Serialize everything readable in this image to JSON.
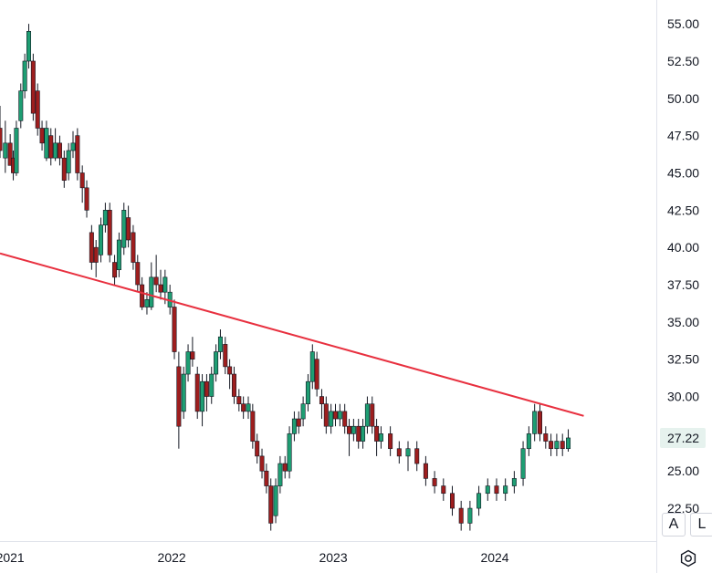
{
  "chart_data": {
    "type": "candlestick",
    "title": "",
    "xlabel": "",
    "ylabel": "",
    "ylim": [
      20.3,
      56.6
    ],
    "xlim": [
      "2020-12-09",
      "2024-12-31"
    ],
    "y_ticks": [
      "55.00",
      "52.50",
      "50.00",
      "47.50",
      "45.00",
      "42.50",
      "40.00",
      "37.50",
      "35.00",
      "32.50",
      "30.00",
      "25.00",
      "22.50"
    ],
    "x_ticks": [
      "2021",
      "2022",
      "2023",
      "2024"
    ],
    "last_price_label": "27.22",
    "last_price": 27.22,
    "grid": false,
    "colors": {
      "up": "#1e9e73",
      "down": "#9e1e1e",
      "wick": "#131722",
      "trendline": "#e8303f",
      "label_bg": "#e6f2ee"
    },
    "trendline": {
      "start": [
        "2020-12-09",
        39.6
      ],
      "end": [
        "2024-07-20",
        28.7
      ]
    },
    "candles": [
      [
        "2020-12-09",
        48,
        46.5,
        49.5,
        46
      ],
      [
        "2020-12-21",
        46,
        47,
        48.5,
        45
      ],
      [
        "2021-01-01",
        47,
        45.5,
        47.6,
        45.8
      ],
      [
        "2021-01-08",
        46,
        45,
        46.5,
        44.5
      ],
      [
        "2021-01-15",
        45,
        48,
        48.5,
        44.8
      ],
      [
        "2021-01-25",
        48.5,
        50.5,
        51,
        48
      ],
      [
        "2021-02-03",
        50.5,
        52.5,
        53,
        50
      ],
      [
        "2021-02-12",
        52.5,
        54.5,
        55,
        52
      ],
      [
        "2021-02-22",
        52.5,
        49,
        53,
        48.5
      ],
      [
        "2021-03-04",
        50.5,
        48,
        51,
        47.5
      ],
      [
        "2021-03-14",
        48,
        47,
        48.5,
        46.5
      ],
      [
        "2021-03-24",
        46,
        48,
        48.5,
        45.8
      ],
      [
        "2021-04-03",
        47.5,
        46,
        48,
        45.5
      ],
      [
        "2021-04-13",
        46,
        47,
        48,
        45.8
      ],
      [
        "2021-04-23",
        47,
        46,
        47.5,
        45.5
      ],
      [
        "2021-05-03",
        46,
        44.5,
        46.5,
        44
      ],
      [
        "2021-05-13",
        45,
        46.5,
        47,
        44.5
      ],
      [
        "2021-05-23",
        46.5,
        47,
        47.8,
        46
      ],
      [
        "2021-06-02",
        47.5,
        45,
        48,
        44.5
      ],
      [
        "2021-06-13",
        45,
        44,
        45.5,
        43
      ],
      [
        "2021-06-23",
        44,
        42.5,
        44.5,
        42
      ],
      [
        "2021-07-04",
        41,
        39,
        41.5,
        38.5
      ],
      [
        "2021-07-14",
        40,
        39,
        40.5,
        38
      ],
      [
        "2021-07-25",
        39.5,
        41.5,
        42,
        39
      ],
      [
        "2021-08-04",
        41.5,
        42.5,
        43,
        41
      ],
      [
        "2021-08-14",
        42.5,
        39.5,
        43,
        39
      ],
      [
        "2021-08-25",
        39,
        38,
        39.5,
        37.5
      ],
      [
        "2021-09-04",
        38.5,
        40.5,
        41,
        38
      ],
      [
        "2021-09-15",
        40,
        42.5,
        43,
        39.5
      ],
      [
        "2021-09-25",
        42,
        40.5,
        42.8,
        40
      ],
      [
        "2021-10-06",
        41,
        39,
        41.5,
        38.5
      ],
      [
        "2021-10-16",
        39,
        37.5,
        39.5,
        37
      ],
      [
        "2021-10-26",
        37.5,
        36,
        38,
        35.8
      ],
      [
        "2021-11-06",
        36,
        36.5,
        37,
        35.5
      ],
      [
        "2021-11-16",
        36,
        38,
        39,
        35.8
      ],
      [
        "2021-11-27",
        38,
        37.5,
        39.5,
        37
      ],
      [
        "2021-12-07",
        37.5,
        37,
        38.5,
        36.5
      ],
      [
        "2021-12-17",
        37,
        38,
        38.5,
        36.2
      ],
      [
        "2021-12-28",
        36,
        37,
        37.5,
        35.5
      ],
      [
        "2022-01-07",
        36,
        33,
        36.5,
        32.5
      ],
      [
        "2022-01-17",
        32,
        28,
        33,
        26.5
      ],
      [
        "2022-01-28",
        29,
        31.5,
        32,
        28.5
      ],
      [
        "2022-02-07",
        31.5,
        33,
        33.5,
        31
      ],
      [
        "2022-02-17",
        33,
        32.5,
        34,
        32
      ],
      [
        "2022-02-28",
        31.5,
        29,
        32,
        28.5
      ],
      [
        "2022-03-11",
        29,
        31,
        31.5,
        28
      ],
      [
        "2022-03-21",
        31,
        30,
        31.5,
        29
      ],
      [
        "2022-04-01",
        30,
        31.5,
        32,
        29.5
      ],
      [
        "2022-04-11",
        31.5,
        33,
        33.5,
        31
      ],
      [
        "2022-04-21",
        33,
        34,
        34.5,
        32.5
      ],
      [
        "2022-05-02",
        33.5,
        32,
        34,
        31.5
      ],
      [
        "2022-05-12",
        32,
        31.5,
        32.5,
        30.5
      ],
      [
        "2022-05-22",
        31.5,
        30,
        32,
        29.5
      ],
      [
        "2022-06-02",
        30,
        29.5,
        30.5,
        29
      ],
      [
        "2022-06-12",
        29.5,
        29,
        30,
        28.5
      ],
      [
        "2022-06-23",
        29,
        29.5,
        30,
        28.5
      ],
      [
        "2022-07-03",
        29,
        27,
        29.5,
        26.5
      ],
      [
        "2022-07-13",
        27,
        26,
        27.5,
        25.5
      ],
      [
        "2022-07-24",
        26,
        25,
        26.5,
        24.5
      ],
      [
        "2022-08-03",
        25,
        24,
        25.5,
        23.5
      ],
      [
        "2022-08-13",
        24,
        21.5,
        24.5,
        21
      ],
      [
        "2022-08-24",
        22,
        24,
        24.5,
        21.5
      ],
      [
        "2022-09-03",
        24,
        25.5,
        26,
        23.5
      ],
      [
        "2022-09-14",
        25.5,
        25,
        26,
        24.5
      ],
      [
        "2022-09-24",
        25,
        27.5,
        28,
        24.5
      ],
      [
        "2022-10-05",
        27.5,
        28.5,
        29,
        27
      ],
      [
        "2022-10-15",
        28.5,
        28,
        29,
        27.5
      ],
      [
        "2022-10-25",
        28.5,
        29.5,
        30,
        28
      ],
      [
        "2022-11-05",
        29.5,
        31,
        31.5,
        29
      ],
      [
        "2022-11-15",
        31,
        33,
        33.5,
        30.5
      ],
      [
        "2022-11-25",
        32.5,
        30.5,
        33,
        30
      ],
      [
        "2022-12-06",
        30,
        29.5,
        30.5,
        28.5
      ],
      [
        "2022-12-16",
        29.5,
        28,
        30,
        27.5
      ],
      [
        "2022-12-27",
        28,
        29,
        29.5,
        27.5
      ],
      [
        "2023-01-06",
        29,
        28.5,
        29.5,
        28
      ],
      [
        "2023-01-16",
        28.5,
        29,
        29.5,
        28
      ],
      [
        "2023-01-27",
        29,
        28,
        29.5,
        27.5
      ],
      [
        "2023-02-06",
        28,
        27.5,
        28.5,
        26
      ],
      [
        "2023-02-16",
        27.5,
        28,
        28.5,
        27
      ],
      [
        "2023-02-27",
        28,
        27,
        28.5,
        26.5
      ],
      [
        "2023-03-09",
        27,
        28,
        28.5,
        26.5
      ],
      [
        "2023-03-19",
        28,
        29.5,
        30,
        27.5
      ],
      [
        "2023-03-30",
        29.5,
        28,
        30,
        27.5
      ],
      [
        "2023-04-09",
        28,
        27,
        28.5,
        26
      ],
      [
        "2023-04-19",
        27,
        27.5,
        28,
        26.5
      ],
      [
        "2023-05-10",
        27.5,
        26.5,
        28,
        26
      ],
      [
        "2023-05-30",
        26.5,
        26,
        27,
        25.5
      ],
      [
        "2023-06-19",
        26,
        26.5,
        27,
        25
      ],
      [
        "2023-07-09",
        26.5,
        25.5,
        27,
        25
      ],
      [
        "2023-07-29",
        25.5,
        24.5,
        26,
        24
      ],
      [
        "2023-08-18",
        24.5,
        24,
        25,
        23.5
      ],
      [
        "2023-09-07",
        24,
        23.5,
        24.5,
        23
      ],
      [
        "2023-09-27",
        23.5,
        22.5,
        24,
        22
      ],
      [
        "2023-10-17",
        22.5,
        21.5,
        23,
        21
      ],
      [
        "2023-11-06",
        21.5,
        22.5,
        23,
        21
      ],
      [
        "2023-11-26",
        22.5,
        23.5,
        24,
        22
      ],
      [
        "2023-12-16",
        23.5,
        24,
        24.5,
        23
      ],
      [
        "2024-01-05",
        24,
        23.5,
        24.5,
        23
      ],
      [
        "2024-01-25",
        23.5,
        24,
        24.5,
        23
      ],
      [
        "2024-02-14",
        24,
        24.5,
        25,
        23.5
      ],
      [
        "2024-03-05",
        24.5,
        26.5,
        27,
        24
      ],
      [
        "2024-03-18",
        26.5,
        27.5,
        28,
        26
      ],
      [
        "2024-03-31",
        27.5,
        29,
        29.5,
        27
      ],
      [
        "2024-04-12",
        29,
        27.5,
        29.5,
        27
      ],
      [
        "2024-04-25",
        27.5,
        27,
        28,
        26.5
      ],
      [
        "2024-05-07",
        27,
        26.5,
        27.5,
        26
      ],
      [
        "2024-05-20",
        26.5,
        27,
        27.5,
        26
      ],
      [
        "2024-06-02",
        27,
        26.5,
        27.5,
        26
      ],
      [
        "2024-06-15",
        26.5,
        27.22,
        27.8,
        26.3
      ]
    ]
  },
  "scale_buttons": {
    "auto": "A",
    "log": "L"
  },
  "icons": {
    "settings": "settings-icon"
  }
}
